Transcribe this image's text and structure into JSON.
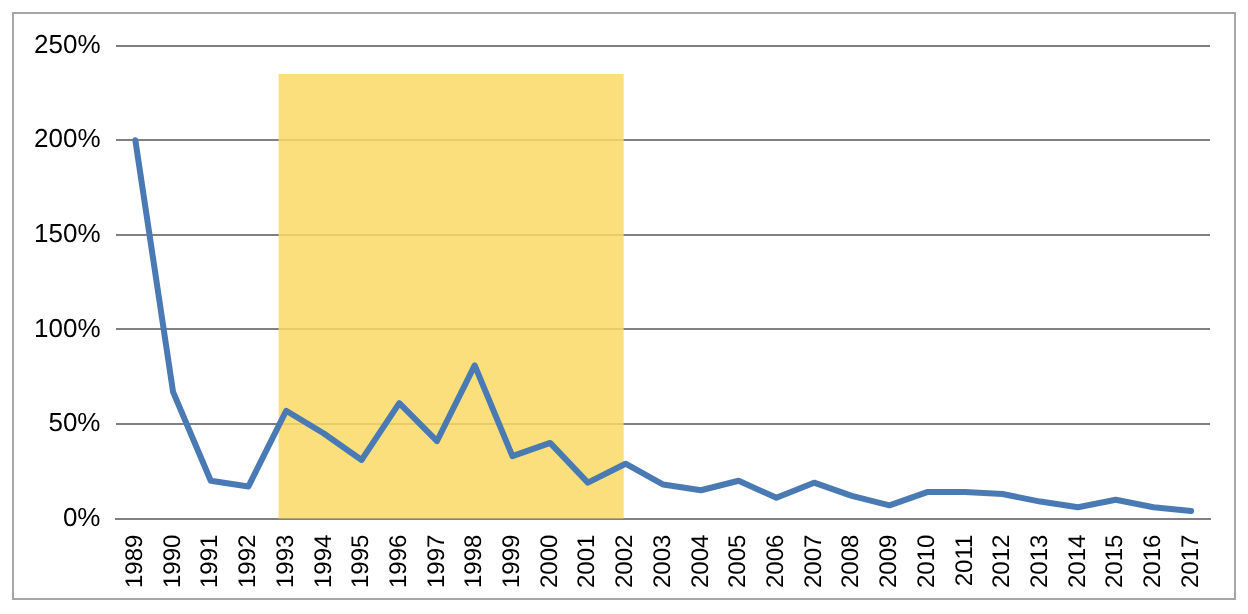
{
  "chart_data": {
    "type": "line",
    "categories": [
      "1989",
      "1990",
      "1991",
      "1992",
      "1993",
      "1994",
      "1995",
      "1996",
      "1997",
      "1998",
      "1999",
      "2000",
      "2001",
      "2002",
      "2003",
      "2004",
      "2005",
      "2006",
      "2007",
      "2008",
      "2009",
      "2010",
      "2011",
      "2012",
      "2013",
      "2014",
      "2015",
      "2016",
      "2017"
    ],
    "series": [
      {
        "color": "#4a7ab4",
        "values": [
          200,
          67,
          20,
          17,
          57,
          45,
          31,
          61,
          41,
          81,
          33,
          40,
          19,
          29,
          18,
          15,
          20,
          11,
          19,
          12,
          7,
          14,
          14,
          13,
          9,
          6,
          10,
          6,
          4
        ]
      }
    ],
    "ylim": [
      0,
      250
    ],
    "yticks": [
      {
        "value": 0,
        "label": "0%"
      },
      {
        "value": 50,
        "label": "50%"
      },
      {
        "value": 100,
        "label": "100%"
      },
      {
        "value": 150,
        "label": "150%"
      },
      {
        "value": 200,
        "label": "200%"
      },
      {
        "value": 250,
        "label": "250%"
      }
    ],
    "bands": [
      {
        "axis": "x",
        "from": "1993",
        "to": "2002",
        "color": "#fcd966"
      }
    ],
    "grid": "y",
    "legend": false,
    "marker": "none",
    "line_style": "solid"
  }
}
